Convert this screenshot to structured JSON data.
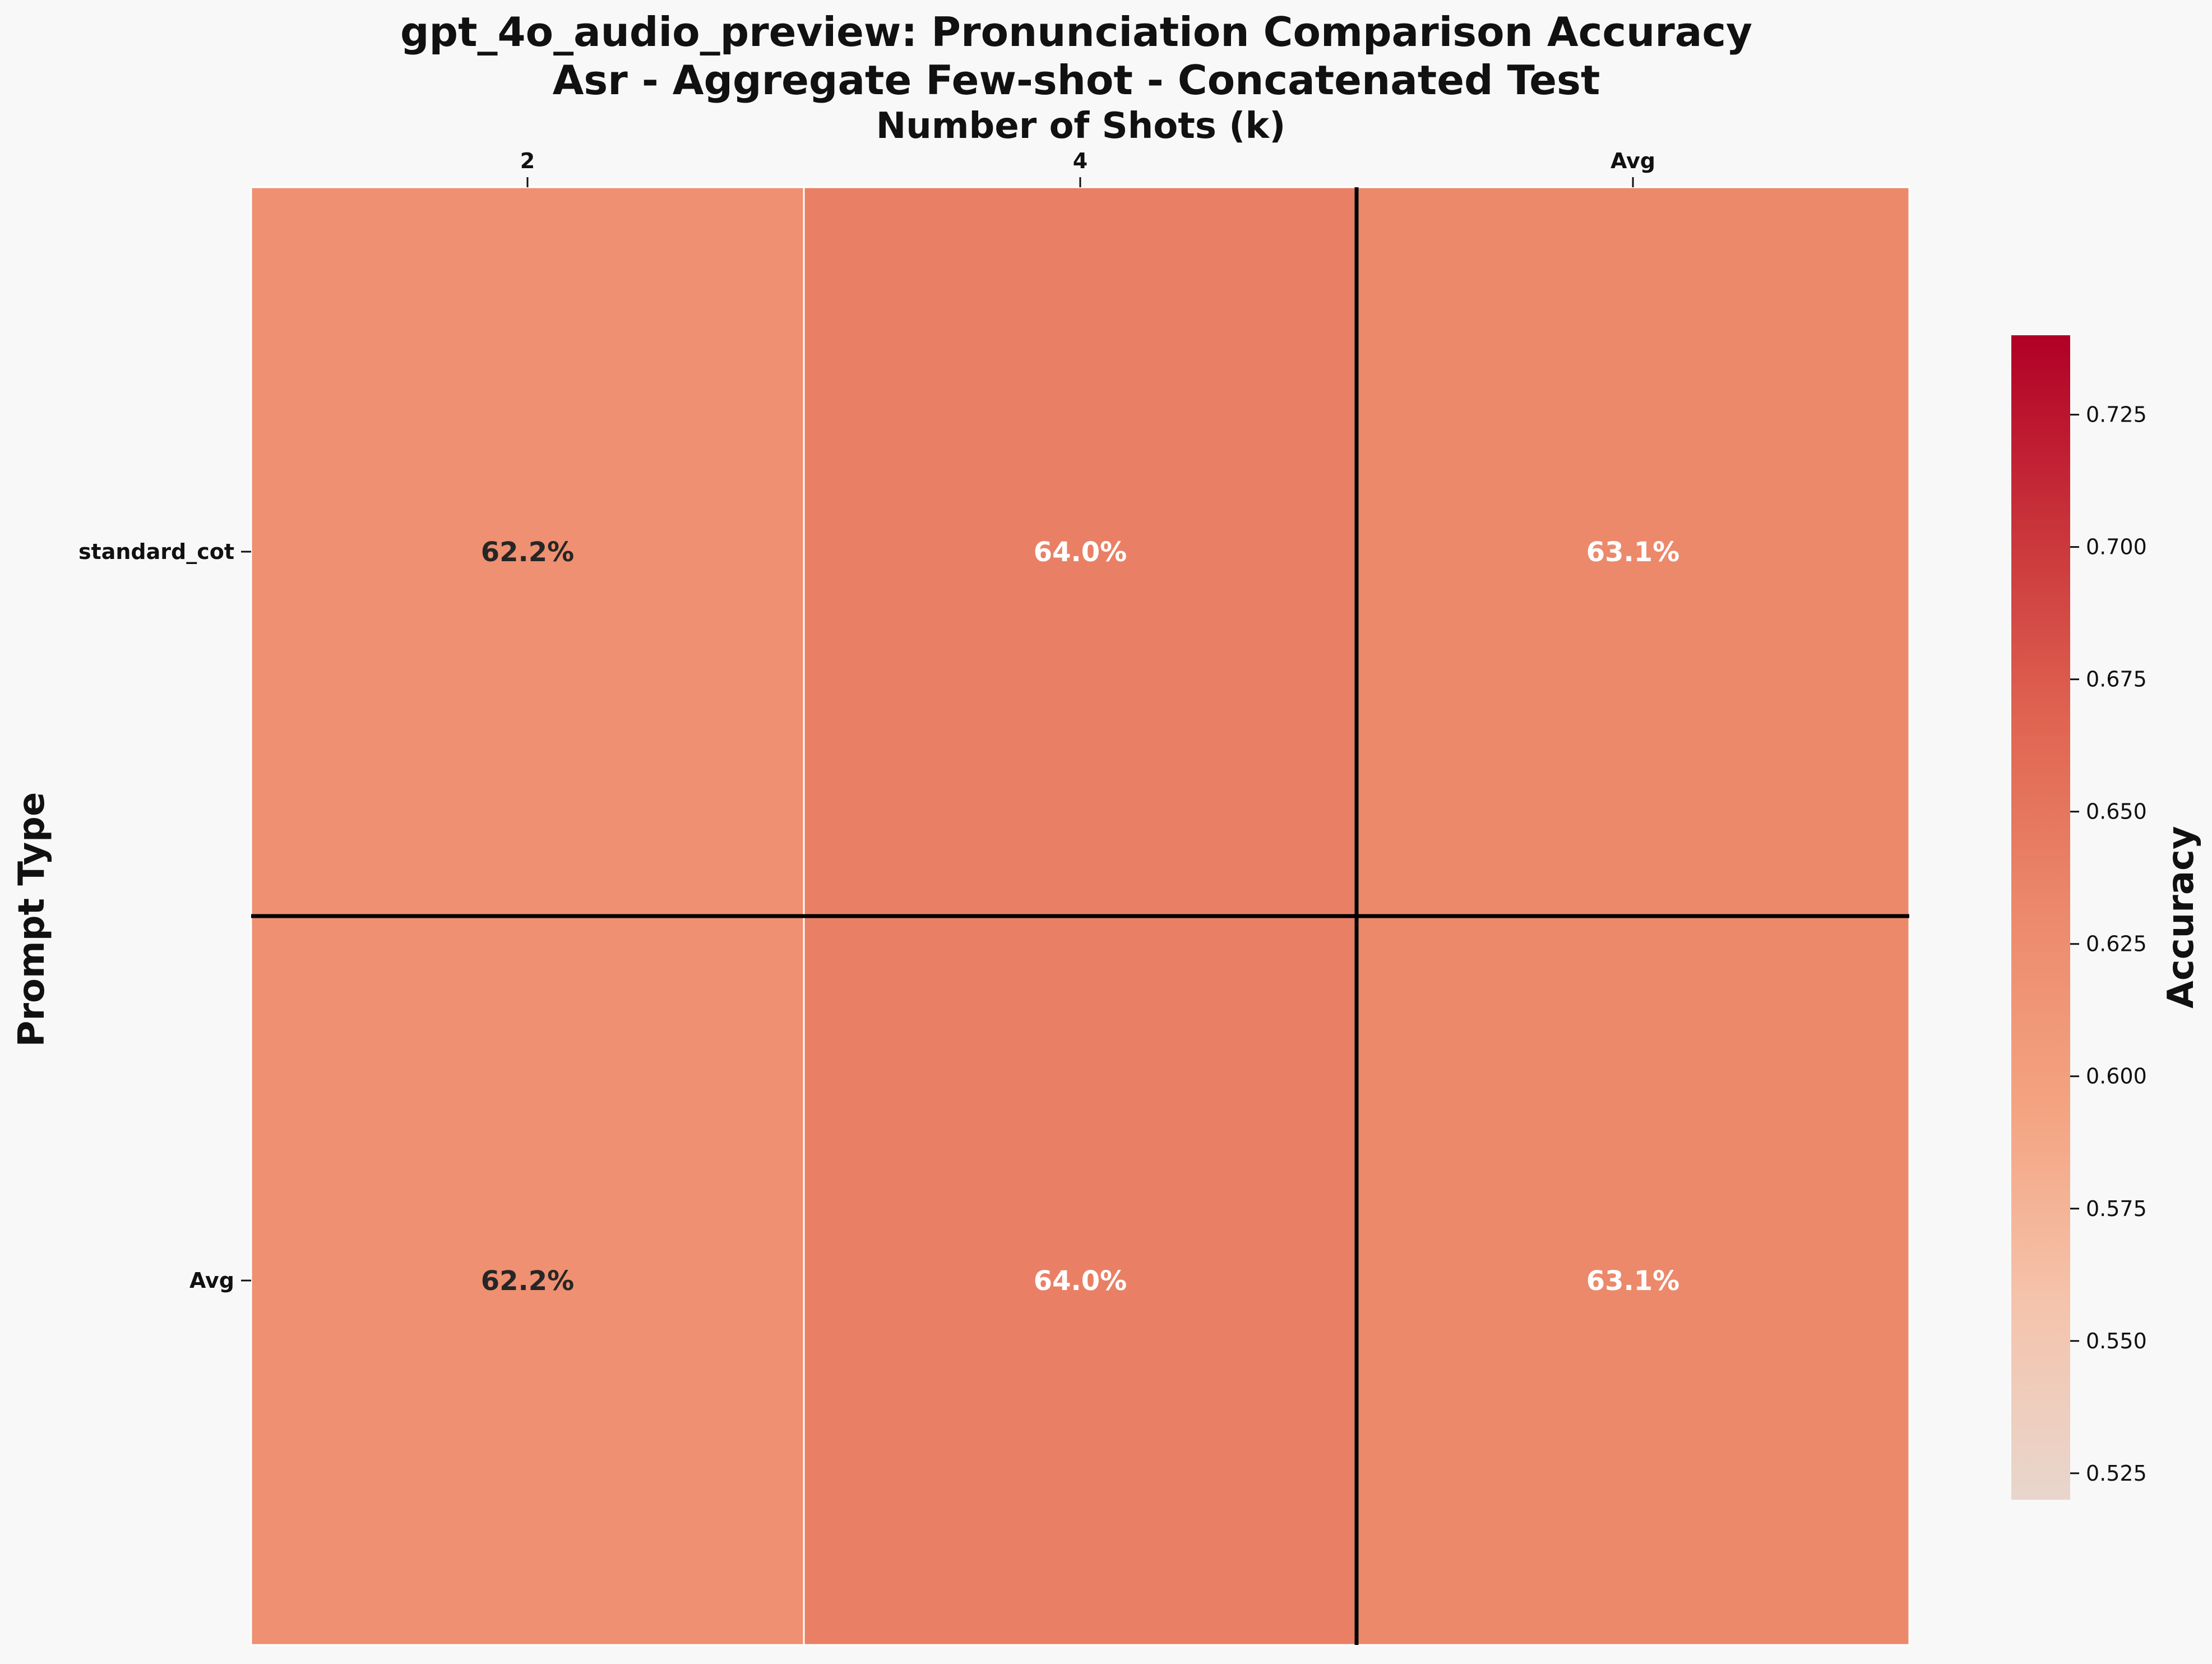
{
  "chart_data": {
    "type": "heatmap",
    "title": "gpt_4o_audio_preview: Pronunciation Comparison Accuracy",
    "subtitle": "Asr - Aggregate Few-shot - Concatenated Test",
    "xlabel": "Number of Shots (k)",
    "ylabel": "Prompt Type",
    "x_categories": [
      "2",
      "4",
      "Avg"
    ],
    "y_categories": [
      "standard_cot",
      "Avg"
    ],
    "values": [
      [
        0.622,
        0.64,
        0.631
      ],
      [
        0.622,
        0.64,
        0.631
      ]
    ],
    "cell_labels": [
      [
        "62.2%",
        "64.0%",
        "63.1%"
      ],
      [
        "62.2%",
        "64.0%",
        "63.1%"
      ]
    ],
    "colorbar": {
      "label": "Accuracy",
      "range": [
        0.52,
        0.74
      ],
      "ticks": [
        0.525,
        0.55,
        0.575,
        0.6,
        0.625,
        0.65,
        0.675,
        0.7,
        0.725
      ],
      "tick_labels": [
        "0.525",
        "0.550",
        "0.575",
        "0.600",
        "0.625",
        "0.650",
        "0.675",
        "0.700",
        "0.725"
      ],
      "colormap_stops": [
        "#e8d6cd",
        "#f5c4ac",
        "#f4a482",
        "#ec8a6c",
        "#e06552",
        "#c9343a",
        "#b10026"
      ]
    },
    "separators": [
      "after last data column",
      "after last data row"
    ]
  }
}
